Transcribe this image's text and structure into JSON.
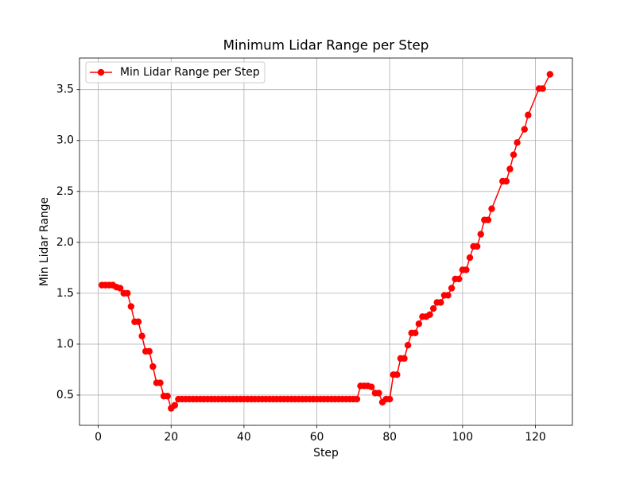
{
  "chart_data": {
    "type": "line",
    "title": "Minimum Lidar Range per Step",
    "xlabel": "Step",
    "ylabel": "Min Lidar Range",
    "x": [
      1,
      2,
      3,
      4,
      5,
      6,
      7,
      8,
      9,
      10,
      11,
      12,
      13,
      14,
      15,
      16,
      17,
      18,
      19,
      20,
      21,
      22,
      23,
      24,
      25,
      26,
      27,
      28,
      29,
      30,
      31,
      32,
      33,
      34,
      35,
      36,
      37,
      38,
      39,
      40,
      41,
      42,
      43,
      44,
      45,
      46,
      47,
      48,
      49,
      50,
      51,
      52,
      53,
      54,
      55,
      56,
      57,
      58,
      59,
      60,
      61,
      62,
      63,
      64,
      65,
      66,
      67,
      68,
      69,
      70,
      71,
      72,
      73,
      74,
      75,
      76,
      77,
      78,
      79,
      80,
      81,
      82,
      83,
      84,
      85,
      86,
      87,
      88,
      89,
      90,
      91,
      92,
      93,
      94,
      95,
      96,
      97,
      98,
      99,
      100,
      101,
      102,
      103,
      104,
      105,
      106,
      107,
      108,
      111,
      112,
      113,
      114,
      115,
      117,
      118,
      121,
      122,
      124
    ],
    "series": [
      {
        "name": "Min Lidar Range per Step",
        "color": "#ff0000",
        "values": [
          1.58,
          1.58,
          1.58,
          1.58,
          1.56,
          1.55,
          1.5,
          1.5,
          1.37,
          1.22,
          1.22,
          1.08,
          0.93,
          0.93,
          0.78,
          0.62,
          0.62,
          0.49,
          0.49,
          0.37,
          0.4,
          0.46,
          0.46,
          0.46,
          0.46,
          0.46,
          0.46,
          0.46,
          0.46,
          0.46,
          0.46,
          0.46,
          0.46,
          0.46,
          0.46,
          0.46,
          0.46,
          0.46,
          0.46,
          0.46,
          0.46,
          0.46,
          0.46,
          0.46,
          0.46,
          0.46,
          0.46,
          0.46,
          0.46,
          0.46,
          0.46,
          0.46,
          0.46,
          0.46,
          0.46,
          0.46,
          0.46,
          0.46,
          0.46,
          0.46,
          0.46,
          0.46,
          0.46,
          0.46,
          0.46,
          0.46,
          0.46,
          0.46,
          0.46,
          0.46,
          0.46,
          0.59,
          0.59,
          0.59,
          0.58,
          0.52,
          0.52,
          0.43,
          0.46,
          0.46,
          0.7,
          0.7,
          0.86,
          0.86,
          0.99,
          1.11,
          1.11,
          1.2,
          1.27,
          1.27,
          1.29,
          1.35,
          1.41,
          1.41,
          1.48,
          1.48,
          1.55,
          1.64,
          1.64,
          1.73,
          1.73,
          1.85,
          1.96,
          1.96,
          2.08,
          2.22,
          2.22,
          2.33,
          2.6,
          2.6,
          2.72,
          2.86,
          2.98,
          3.11,
          3.25,
          3.51,
          3.51,
          3.65
        ]
      }
    ],
    "xlim": [
      -5.15,
      130.15
    ],
    "xticks": [
      0,
      20,
      40,
      60,
      80,
      100,
      120
    ],
    "ylim": [
      0.203,
      3.81
    ],
    "yticks": [
      0.5,
      {
        "value": 1,
        "label": "1.0"
      },
      1.5,
      {
        "value": 2,
        "label": "2.0"
      },
      2.5,
      {
        "value": 3,
        "label": "3.0"
      },
      3.5
    ],
    "grid": true,
    "legend": "upper left"
  }
}
